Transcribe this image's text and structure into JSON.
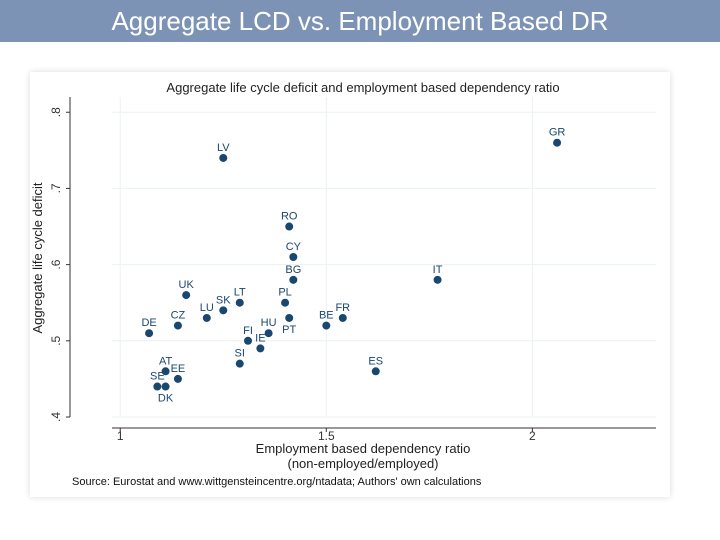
{
  "slide": {
    "title": "Aggregate LCD vs. Employment Based DR"
  },
  "source_note": "Source: Eurostat and www.wittgensteincentre.org/ntadata; Authors' own calculations",
  "colors": {
    "banner": "#7d93b6",
    "point": "#1a476f",
    "grid": "#eaf2f3"
  },
  "chart_data": {
    "type": "scatter",
    "title": "Aggregate life cycle deficit and employment based dependency ratio",
    "xlabel": "Employment based dependency ratio",
    "xlabel2": "(non-employed/employed)",
    "ylabel": "Aggregate life cycle deficit",
    "xlim": [
      0.98,
      2.3
    ],
    "ylim": [
      0.4,
      0.82
    ],
    "xticks": [
      {
        "v": 1,
        "label": "1"
      },
      {
        "v": 1.5,
        "label": "1.5"
      },
      {
        "v": 2,
        "label": "2"
      }
    ],
    "yticks": [
      {
        "v": 0.4,
        "label": ".4"
      },
      {
        "v": 0.5,
        "label": ".5"
      },
      {
        "v": 0.6,
        "label": ".6"
      },
      {
        "v": 0.7,
        "label": ".7"
      },
      {
        "v": 0.8,
        "label": ".8"
      }
    ],
    "points": [
      {
        "label": "GR",
        "x": 2.06,
        "y": 0.76,
        "pos": "above"
      },
      {
        "label": "LV",
        "x": 1.25,
        "y": 0.74,
        "pos": "above"
      },
      {
        "label": "RO",
        "x": 1.41,
        "y": 0.65,
        "pos": "above"
      },
      {
        "label": "CY",
        "x": 1.42,
        "y": 0.61,
        "pos": "above"
      },
      {
        "label": "BG",
        "x": 1.42,
        "y": 0.58,
        "pos": "above"
      },
      {
        "label": "IT",
        "x": 1.77,
        "y": 0.58,
        "pos": "above"
      },
      {
        "label": "UK",
        "x": 1.16,
        "y": 0.56,
        "pos": "above"
      },
      {
        "label": "LT",
        "x": 1.29,
        "y": 0.55,
        "pos": "above"
      },
      {
        "label": "PL",
        "x": 1.4,
        "y": 0.55,
        "pos": "above"
      },
      {
        "label": "SK",
        "x": 1.25,
        "y": 0.54,
        "pos": "above"
      },
      {
        "label": "LU",
        "x": 1.21,
        "y": 0.53,
        "pos": "above"
      },
      {
        "label": "CZ",
        "x": 1.14,
        "y": 0.52,
        "pos": "above"
      },
      {
        "label": "FR",
        "x": 1.54,
        "y": 0.53,
        "pos": "above"
      },
      {
        "label": "BE",
        "x": 1.5,
        "y": 0.52,
        "pos": "above"
      },
      {
        "label": "PT",
        "x": 1.41,
        "y": 0.53,
        "pos": "below"
      },
      {
        "label": "DE",
        "x": 1.07,
        "y": 0.51,
        "pos": "above"
      },
      {
        "label": "HU",
        "x": 1.36,
        "y": 0.51,
        "pos": "above"
      },
      {
        "label": "FI",
        "x": 1.31,
        "y": 0.5,
        "pos": "above"
      },
      {
        "label": "IE",
        "x": 1.34,
        "y": 0.49,
        "pos": "above"
      },
      {
        "label": "SI",
        "x": 1.29,
        "y": 0.47,
        "pos": "above"
      },
      {
        "label": "ES",
        "x": 1.62,
        "y": 0.46,
        "pos": "above"
      },
      {
        "label": "AT",
        "x": 1.11,
        "y": 0.46,
        "pos": "above"
      },
      {
        "label": "EE",
        "x": 1.14,
        "y": 0.45,
        "pos": "above"
      },
      {
        "label": "SE",
        "x": 1.09,
        "y": 0.44,
        "pos": "above"
      },
      {
        "label": "DK",
        "x": 1.11,
        "y": 0.44,
        "pos": "below"
      }
    ]
  }
}
